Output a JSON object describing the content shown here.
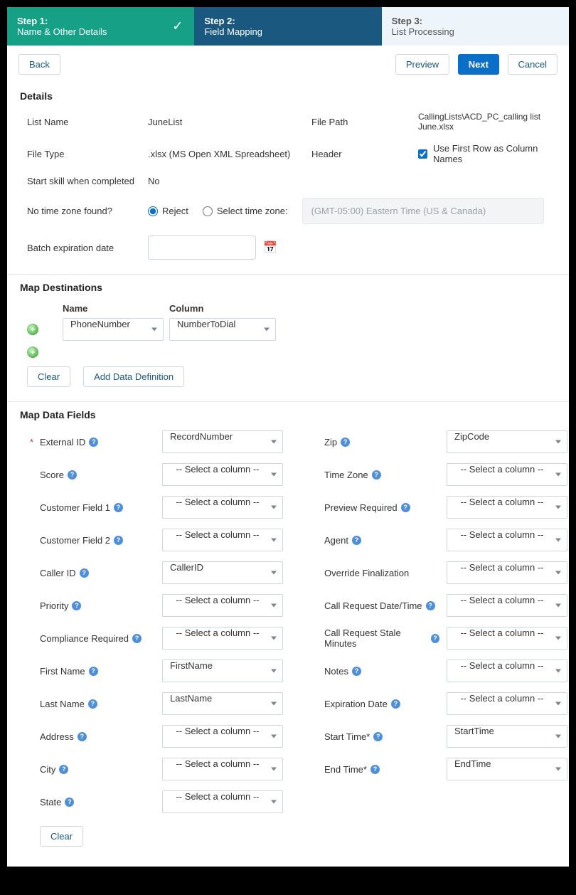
{
  "colors": {
    "stepDone": "#16a085",
    "stepActive": "#1a587f",
    "stepFuture": "#eef5fa",
    "primary": "#0b6fc7",
    "border": "#cfd7de",
    "help": "#4e8fd9",
    "required": "#d93025"
  },
  "stepper": {
    "s1_num": "Step 1:",
    "s1_title": "Name & Other Details",
    "s2_num": "Step 2:",
    "s2_title": "Field Mapping",
    "s3_num": "Step 3:",
    "s3_title": "List Processing"
  },
  "toolbar": {
    "back": "Back",
    "preview": "Preview",
    "next": "Next",
    "cancel": "Cancel"
  },
  "details": {
    "title": "Details",
    "listNameLabel": "List Name",
    "listNameValue": "JuneList",
    "filePathLabel": "File Path",
    "filePathValue": "CallingLists\\ACD_PC_calling list June.xlsx",
    "fileTypeLabel": "File Type",
    "fileTypeValue": ".xlsx (MS Open XML Spreadsheet)",
    "headerLabel": "Header",
    "headerCheckboxLabel": "Use First Row as Column Names",
    "headerChecked": true,
    "startSkillLabel": "Start skill when completed",
    "startSkillValue": "No",
    "noTzLabel": "No time zone found?",
    "rejectLabel": "Reject",
    "selectTzLabel": "Select time zone:",
    "tzDisabledText": "(GMT-05:00) Eastern Time (US & Canada)",
    "batchExpLabel": "Batch expiration date"
  },
  "mapDest": {
    "title": "Map Destinations",
    "nameHeader": "Name",
    "columnHeader": "Column",
    "nameValue": "PhoneNumber",
    "columnValue": "NumberToDial",
    "clear": "Clear",
    "addDef": "Add Data Definition"
  },
  "mapData": {
    "title": "Map Data Fields",
    "placeholder": "-- Select a column --",
    "clear": "Clear",
    "fields": {
      "externalId": {
        "label": "External ID",
        "value": "RecordNumber",
        "required": true,
        "help": true
      },
      "zip": {
        "label": "Zip",
        "value": "ZipCode",
        "help": true
      },
      "score": {
        "label": "Score",
        "value": "",
        "help": true
      },
      "timeZone": {
        "label": "Time Zone",
        "value": "",
        "help": true
      },
      "custField1": {
        "label": "Customer Field 1",
        "value": "",
        "help": true
      },
      "previewReq": {
        "label": "Preview Required",
        "value": "",
        "help": true
      },
      "custField2": {
        "label": "Customer Field 2",
        "value": "",
        "help": true
      },
      "agent": {
        "label": "Agent",
        "value": "",
        "help": true
      },
      "callerId": {
        "label": "Caller ID",
        "value": "CallerID",
        "help": true
      },
      "overrideFin": {
        "label": "Override Finalization",
        "value": "",
        "help": false
      },
      "priority": {
        "label": "Priority",
        "value": "",
        "help": true
      },
      "callReqDate": {
        "label": "Call Request Date/Time",
        "value": "",
        "help": true
      },
      "compReq": {
        "label": "Compliance Required",
        "value": "",
        "help": true
      },
      "callReqStale": {
        "label": "Call Request Stale Minutes",
        "value": "",
        "help": true
      },
      "firstName": {
        "label": "First Name",
        "value": "FirstName",
        "help": true
      },
      "notes": {
        "label": "Notes",
        "value": "",
        "help": true
      },
      "lastName": {
        "label": "Last Name",
        "value": "LastName",
        "help": true
      },
      "expDate": {
        "label": "Expiration Date",
        "value": "",
        "help": true
      },
      "address": {
        "label": "Address",
        "value": "",
        "help": true
      },
      "startTime": {
        "label": "Start Time*",
        "value": "StartTime",
        "help": true
      },
      "city": {
        "label": "City",
        "value": "",
        "help": true
      },
      "endTime": {
        "label": "End Time*",
        "value": "EndTime",
        "help": true
      },
      "state": {
        "label": "State",
        "value": "",
        "help": true
      }
    }
  }
}
